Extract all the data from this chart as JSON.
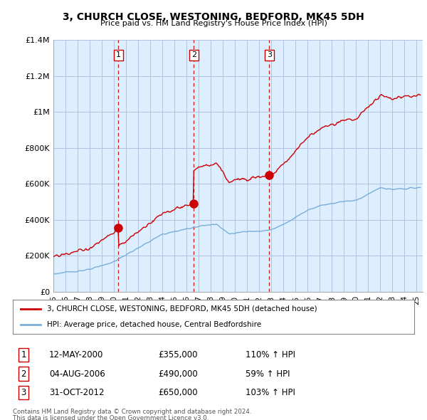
{
  "title": "3, CHURCH CLOSE, WESTONING, BEDFORD, MK45 5DH",
  "subtitle": "Price paid vs. HM Land Registry's House Price Index (HPI)",
  "sale_dates": [
    2000.37,
    2006.59,
    2012.83
  ],
  "sale_prices": [
    355000,
    490000,
    650000
  ],
  "sale_labels": [
    "1",
    "2",
    "3"
  ],
  "sale_date_strings": [
    "12-MAY-2000",
    "04-AUG-2006",
    "31-OCT-2012"
  ],
  "sale_price_strings": [
    "£355,000",
    "£490,000",
    "£650,000"
  ],
  "sale_hpi_strings": [
    "110% ↑ HPI",
    "59% ↑ HPI",
    "103% ↑ HPI"
  ],
  "legend_property": "3, CHURCH CLOSE, WESTONING, BEDFORD, MK45 5DH (detached house)",
  "legend_hpi": "HPI: Average price, detached house, Central Bedfordshire",
  "footer1": "Contains HM Land Registry data © Crown copyright and database right 2024.",
  "footer2": "This data is licensed under the Open Government Licence v3.0.",
  "ylim": [
    0,
    1400000
  ],
  "yticks": [
    0,
    200000,
    400000,
    600000,
    800000,
    1000000,
    1200000,
    1400000
  ],
  "ytick_labels": [
    "£0",
    "£200K",
    "£400K",
    "£600K",
    "£800K",
    "£1M",
    "£1.2M",
    "£1.4M"
  ],
  "property_line_color": "#cc0000",
  "hpi_line_color": "#7aaed6",
  "plot_bg_color": "#ddeeff",
  "sale_marker_color": "#cc0000",
  "vline_color": "#cc0000",
  "background_color": "#ffffff",
  "grid_color": "#aabbdd"
}
